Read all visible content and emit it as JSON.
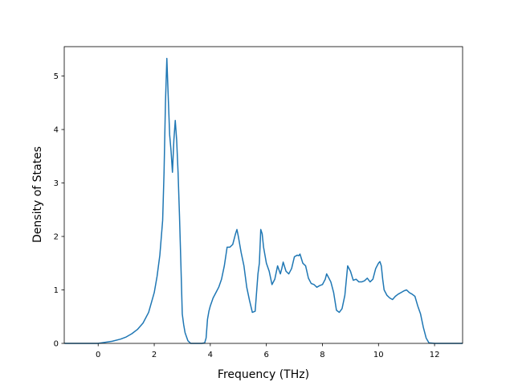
{
  "chart_data": {
    "type": "line",
    "title": "",
    "xlabel": "Frequency (THz)",
    "ylabel": "Density of States",
    "xlim": [
      -1.21,
      13.0
    ],
    "ylim": [
      0,
      5.55
    ],
    "xticks": [
      0,
      2,
      4,
      6,
      8,
      10,
      12
    ],
    "yticks": [
      0,
      1,
      2,
      3,
      4,
      5
    ],
    "xtick_labels": [
      "0",
      "2",
      "4",
      "6",
      "8",
      "10",
      "12"
    ],
    "ytick_labels": [
      "0",
      "1",
      "2",
      "3",
      "4",
      "5"
    ],
    "grid": false,
    "legend": "none",
    "line_color": "#1f77b4",
    "series": [
      {
        "x": [
          -1.2,
          -0.5,
          0.0,
          0.5,
          0.8,
          1.0,
          1.2,
          1.4,
          1.6,
          1.8,
          2.0,
          2.1,
          2.2,
          2.3,
          2.35,
          2.4,
          2.45,
          2.5,
          2.55,
          2.6,
          2.65,
          2.7,
          2.75,
          2.8,
          2.85,
          2.9,
          2.95,
          3.0,
          3.05,
          3.1,
          3.2,
          3.3,
          3.5,
          3.7,
          3.8,
          3.85,
          3.9,
          3.95,
          4.0,
          4.1,
          4.2,
          4.3,
          4.4,
          4.5,
          4.6,
          4.7,
          4.8,
          4.9,
          4.95,
          5.0,
          5.1,
          5.2,
          5.3,
          5.4,
          5.5,
          5.6,
          5.7,
          5.75,
          5.8,
          5.85,
          5.9,
          6.0,
          6.1,
          6.2,
          6.3,
          6.4,
          6.5,
          6.55,
          6.6,
          6.7,
          6.8,
          6.9,
          7.0,
          7.1,
          7.15,
          7.2,
          7.3,
          7.4,
          7.5,
          7.6,
          7.7,
          7.8,
          7.9,
          8.0,
          8.05,
          8.1,
          8.15,
          8.2,
          8.3,
          8.4,
          8.5,
          8.6,
          8.7,
          8.8,
          8.9,
          9.0,
          9.1,
          9.2,
          9.3,
          9.4,
          9.5,
          9.6,
          9.7,
          9.8,
          9.9,
          10.0,
          10.05,
          10.1,
          10.15,
          10.2,
          10.3,
          10.4,
          10.5,
          10.6,
          10.7,
          10.8,
          10.9,
          11.0,
          11.1,
          11.2,
          11.3,
          11.4,
          11.5,
          11.6,
          11.7,
          11.8,
          12.0,
          12.5,
          13.0
        ],
        "y": [
          0.0,
          0.0,
          0.0,
          0.04,
          0.08,
          0.12,
          0.18,
          0.26,
          0.38,
          0.58,
          0.95,
          1.25,
          1.65,
          2.3,
          3.2,
          4.5,
          5.33,
          4.6,
          3.9,
          3.6,
          3.2,
          3.8,
          4.17,
          3.8,
          3.2,
          2.4,
          1.5,
          0.55,
          0.35,
          0.2,
          0.05,
          0.0,
          0.0,
          0.0,
          0.01,
          0.1,
          0.45,
          0.6,
          0.7,
          0.85,
          0.95,
          1.05,
          1.2,
          1.45,
          1.8,
          1.8,
          1.85,
          2.05,
          2.13,
          2.0,
          1.7,
          1.45,
          1.05,
          0.8,
          0.58,
          0.6,
          1.3,
          1.5,
          2.13,
          2.05,
          1.8,
          1.5,
          1.35,
          1.1,
          1.2,
          1.45,
          1.3,
          1.4,
          1.52,
          1.35,
          1.3,
          1.4,
          1.62,
          1.65,
          1.64,
          1.67,
          1.5,
          1.45,
          1.22,
          1.12,
          1.1,
          1.05,
          1.08,
          1.1,
          1.15,
          1.2,
          1.3,
          1.25,
          1.15,
          0.95,
          0.62,
          0.58,
          0.65,
          0.9,
          1.45,
          1.35,
          1.18,
          1.2,
          1.15,
          1.15,
          1.17,
          1.22,
          1.15,
          1.2,
          1.4,
          1.5,
          1.53,
          1.45,
          1.2,
          1.0,
          0.9,
          0.85,
          0.82,
          0.88,
          0.92,
          0.95,
          0.98,
          1.0,
          0.95,
          0.92,
          0.88,
          0.7,
          0.55,
          0.3,
          0.1,
          0.01,
          0.0,
          0.0,
          0.0
        ]
      }
    ]
  }
}
